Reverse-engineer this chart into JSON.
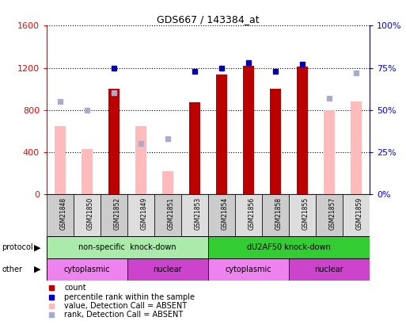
{
  "title": "GDS667 / 143384_at",
  "samples": [
    "GSM21848",
    "GSM21850",
    "GSM21852",
    "GSM21849",
    "GSM21851",
    "GSM21853",
    "GSM21854",
    "GSM21856",
    "GSM21858",
    "GSM21855",
    "GSM21857",
    "GSM21859"
  ],
  "count_values": [
    null,
    null,
    1000,
    null,
    null,
    870,
    1140,
    1220,
    1000,
    1210,
    null,
    null
  ],
  "count_absent": [
    650,
    430,
    null,
    650,
    220,
    null,
    null,
    null,
    null,
    null,
    800,
    880
  ],
  "rank_values": [
    null,
    null,
    75,
    null,
    null,
    73,
    75,
    78,
    73,
    77,
    null,
    null
  ],
  "rank_absent": [
    55,
    50,
    60,
    30,
    33,
    null,
    null,
    null,
    null,
    null,
    57,
    72
  ],
  "ylim_left": [
    0,
    1600
  ],
  "ylim_right": [
    0,
    100
  ],
  "yticks_left": [
    0,
    400,
    800,
    1200,
    1600
  ],
  "yticks_right": [
    0,
    25,
    50,
    75,
    100
  ],
  "ytick_labels_left": [
    "0",
    "400",
    "800",
    "1200",
    "1600"
  ],
  "ytick_labels_right": [
    "0%",
    "25%",
    "50%",
    "75%",
    "100%"
  ],
  "protocol_groups": [
    {
      "label": "non-specific  knock-down",
      "start": 0,
      "end": 6,
      "color": "#AAEAAA"
    },
    {
      "label": "dU2AF50 knock-down",
      "start": 6,
      "end": 12,
      "color": "#33CC33"
    }
  ],
  "other_groups": [
    {
      "label": "cytoplasmic",
      "start": 0,
      "end": 3,
      "color": "#EE82EE"
    },
    {
      "label": "nuclear",
      "start": 3,
      "end": 6,
      "color": "#CC44CC"
    },
    {
      "label": "cytoplasmic",
      "start": 6,
      "end": 9,
      "color": "#EE82EE"
    },
    {
      "label": "nuclear",
      "start": 9,
      "end": 12,
      "color": "#CC44CC"
    }
  ],
  "bar_width": 0.4,
  "count_color": "#BB0000",
  "count_absent_color": "#FFBBBB",
  "rank_color": "#0000BB",
  "rank_absent_color": "#AAAACC",
  "bg_color": "#FFFFFF",
  "plot_bg": "#FFFFFF",
  "legend_items": [
    {
      "label": "count",
      "color": "#BB0000"
    },
    {
      "label": "percentile rank within the sample",
      "color": "#0000BB"
    },
    {
      "label": "value, Detection Call = ABSENT",
      "color": "#FFBBBB"
    },
    {
      "label": "rank, Detection Call = ABSENT",
      "color": "#AAAACC"
    }
  ]
}
